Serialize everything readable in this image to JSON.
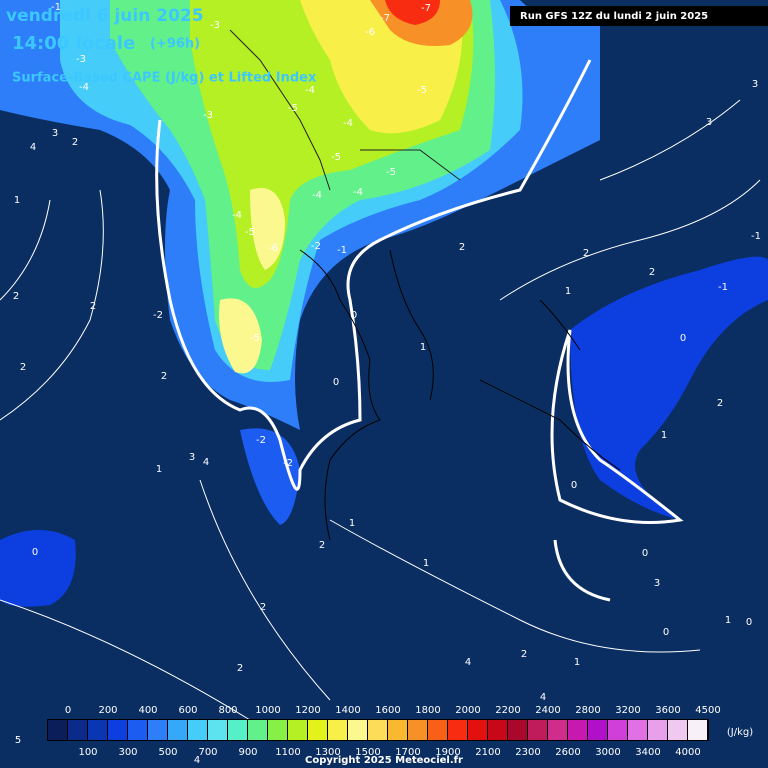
{
  "header": {
    "date": "vendredi 6 juin 2025",
    "time": "14:00 locale",
    "lead": "(+96h)",
    "product": "Surface-Based CAPE (J/kg) et Lifted Index",
    "run": "Run GFS 12Z du lundi 2 juin 2025"
  },
  "contour_labels": [
    "-3",
    "-7",
    "-7",
    "-6",
    "-4",
    "-5",
    "-5",
    "-3",
    "-4",
    "-5",
    "-5",
    "-4",
    "-4",
    "-5",
    "-6",
    "-4",
    "-2",
    "-1",
    "-5",
    "-2",
    "-2",
    "-2",
    "0",
    "0",
    "1",
    "2",
    "2",
    "2",
    "1",
    "0",
    "-1",
    "-1",
    "3",
    "3",
    "2",
    "1",
    "0",
    "0",
    "3",
    "0",
    "1",
    "0",
    "2",
    "2",
    "2",
    "1",
    "4",
    "4",
    "1",
    "2",
    "1",
    "1",
    "3",
    "4",
    "2",
    "2",
    "2",
    "2",
    "1",
    "2",
    "3",
    "4",
    "0",
    "5",
    "4",
    "-3",
    "-4",
    "-1"
  ],
  "colorbar": {
    "colors": [
      "#0c1e5a",
      "#0b2a8a",
      "#0a36b4",
      "#0d3fe0",
      "#1c5cf0",
      "#2d7ef8",
      "#36a8fa",
      "#45ccf8",
      "#5de3f0",
      "#56f0c8",
      "#62f08a",
      "#86f046",
      "#b4f024",
      "#e4f21c",
      "#f8f048",
      "#fcf890",
      "#fcdc58",
      "#f8b830",
      "#f89028",
      "#f86018",
      "#f82c10",
      "#e41010",
      "#c80818",
      "#a8082c",
      "#c01c5c",
      "#d02c8c",
      "#c818b0",
      "#b010c8",
      "#d040d8",
      "#e070e4",
      "#e8a0ec",
      "#f0c8f0",
      "#f8f0f8"
    ],
    "top_labels": [
      "0",
      "200",
      "400",
      "600",
      "800",
      "1000",
      "1200",
      "1400",
      "1600",
      "1800",
      "2000",
      "2200",
      "2400",
      "2800",
      "3200",
      "3600",
      "4500"
    ],
    "bottom_labels": [
      "100",
      "300",
      "500",
      "700",
      "900",
      "1100",
      "1300",
      "1500",
      "1700",
      "1900",
      "2100",
      "2300",
      "2600",
      "3000",
      "3400",
      "4000"
    ],
    "unit": "(J/kg)"
  },
  "footer": {
    "copyright": "Copyright 2025 Meteociel.fr"
  }
}
